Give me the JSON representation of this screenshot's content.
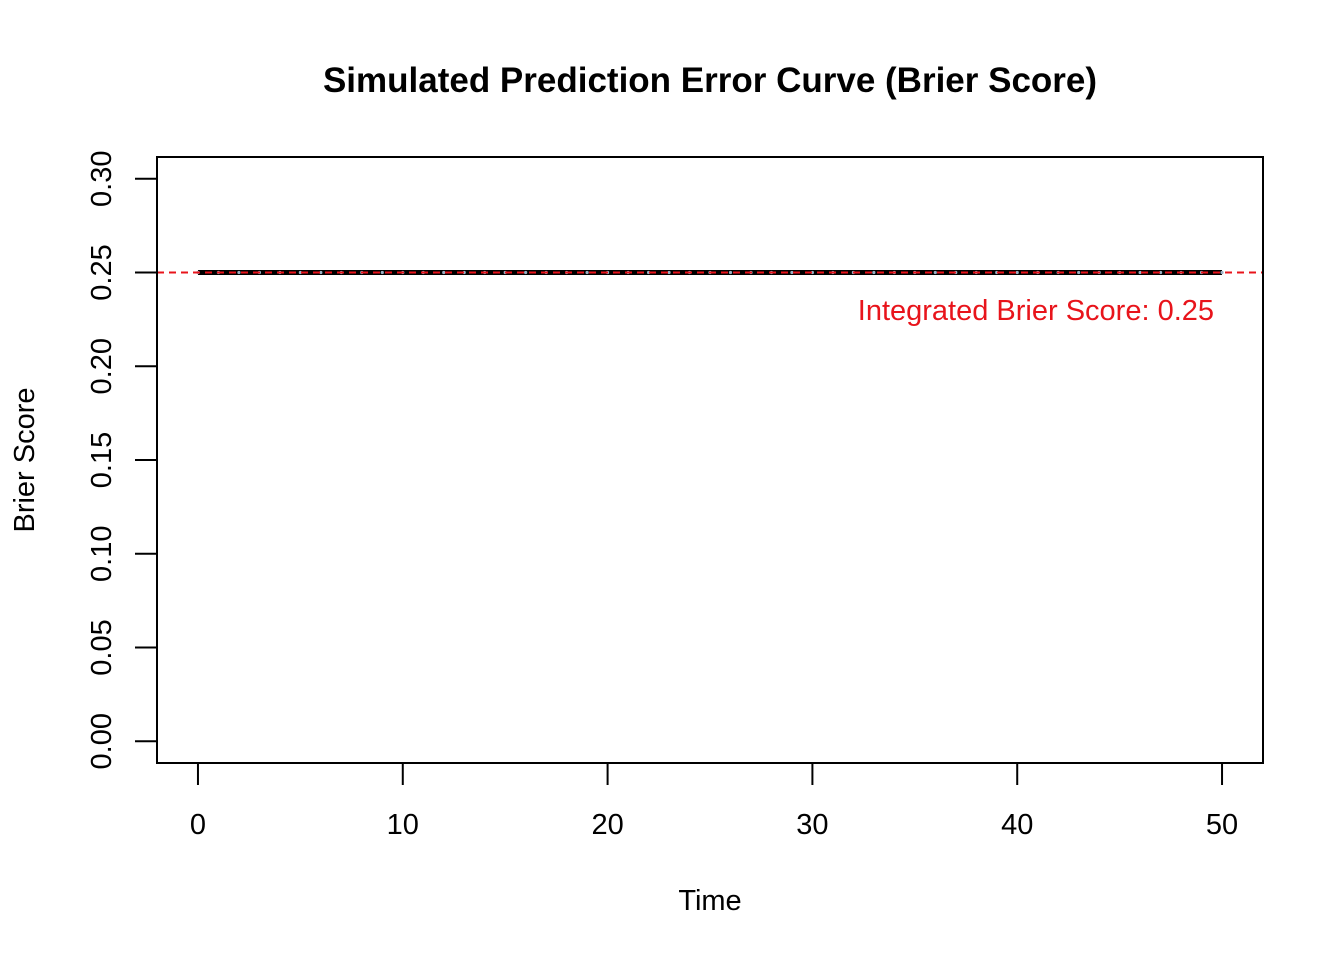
{
  "chart_data": {
    "type": "line",
    "title": "Simulated Prediction Error Curve (Brier Score)",
    "xlabel": "Time",
    "ylabel": "Brier Score",
    "xlim": [
      -2,
      52
    ],
    "ylim": [
      -0.0116,
      0.3116
    ],
    "x_ticks": [
      0,
      10,
      20,
      30,
      40,
      50
    ],
    "x_tick_labels": [
      "0",
      "10",
      "20",
      "30",
      "40",
      "50"
    ],
    "y_ticks": [
      0.0,
      0.05,
      0.1,
      0.15,
      0.2,
      0.25,
      0.3
    ],
    "y_tick_labels": [
      "0.00",
      "0.05",
      "0.10",
      "0.15",
      "0.20",
      "0.25",
      "0.30"
    ],
    "grid": false,
    "series": [
      {
        "color": "#000000",
        "x": [
          0,
          1,
          2,
          3,
          4,
          5,
          6,
          7,
          8,
          9,
          10,
          11,
          12,
          13,
          14,
          15,
          16,
          17,
          18,
          19,
          20,
          21,
          22,
          23,
          24,
          25,
          26,
          27,
          28,
          29,
          30,
          31,
          32,
          33,
          34,
          35,
          36,
          37,
          38,
          39,
          40,
          41,
          42,
          43,
          44,
          45,
          46,
          47,
          48,
          49,
          50
        ],
        "values": [
          0.25,
          0.25,
          0.25,
          0.25,
          0.25,
          0.25,
          0.25,
          0.25,
          0.25,
          0.25,
          0.25,
          0.25,
          0.25,
          0.25,
          0.25,
          0.25,
          0.25,
          0.25,
          0.25,
          0.25,
          0.25,
          0.25,
          0.25,
          0.25,
          0.25,
          0.25,
          0.25,
          0.25,
          0.25,
          0.25,
          0.25,
          0.25,
          0.25,
          0.25,
          0.25,
          0.25,
          0.25,
          0.25,
          0.25,
          0.25,
          0.25,
          0.25,
          0.25,
          0.25,
          0.25,
          0.25,
          0.25,
          0.25,
          0.25,
          0.25,
          0.25
        ]
      }
    ],
    "reference_line": {
      "y": 0.25,
      "color": "#e8141b",
      "style": "dashed"
    },
    "annotation": {
      "text": "Integrated Brier Score: 0.25",
      "color": "#e8141b",
      "x": 50,
      "y": 0.23
    }
  }
}
